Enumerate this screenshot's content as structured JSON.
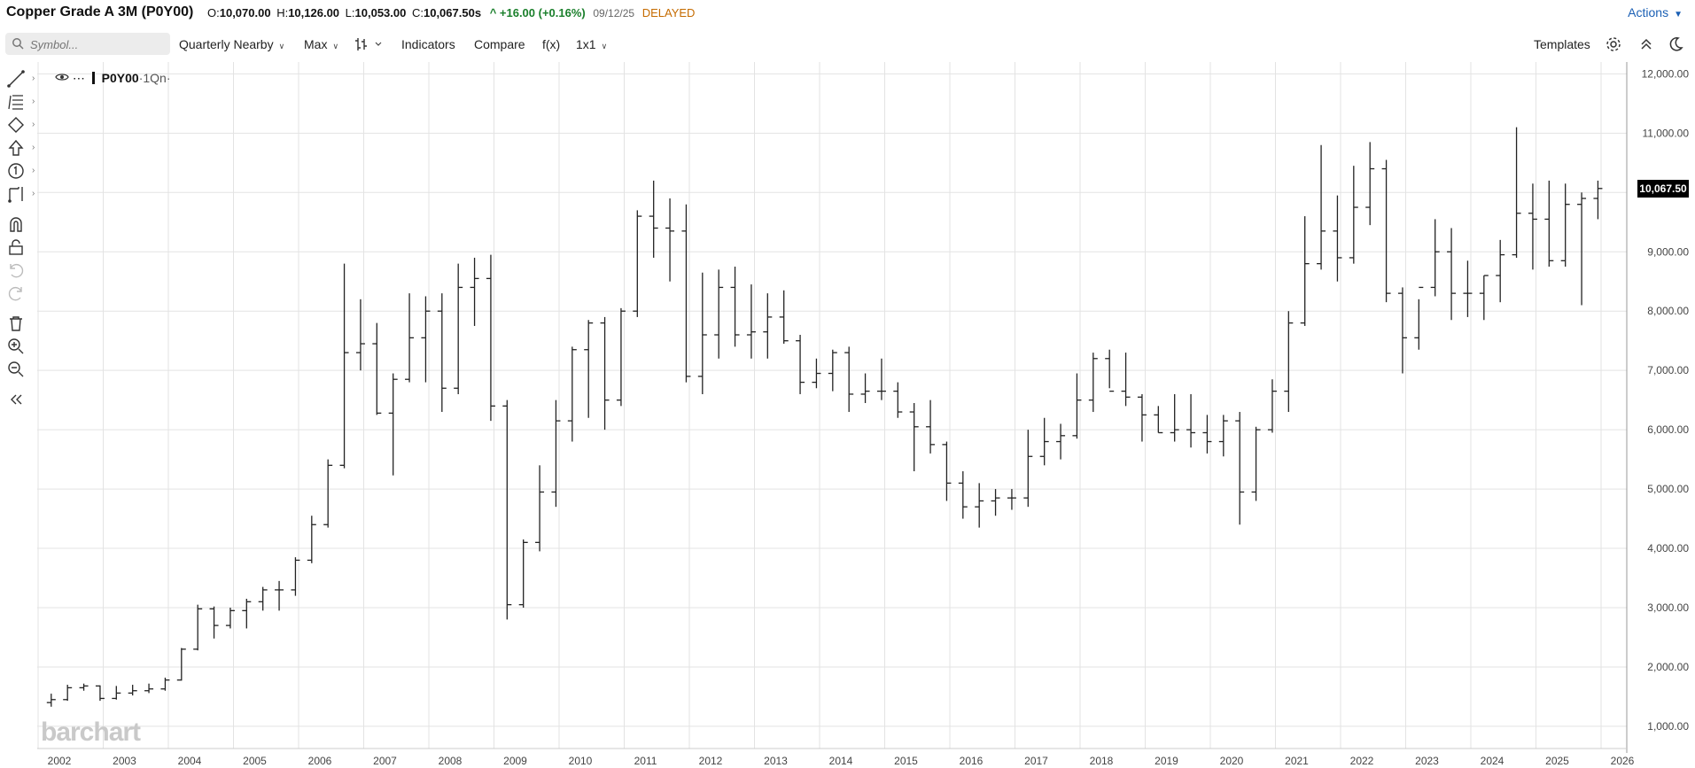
{
  "header": {
    "title": "Copper Grade A 3M (P0Y00)",
    "open_label": "O:",
    "open": "10,070.00",
    "high_label": "H:",
    "high": "10,126.00",
    "low_label": "L:",
    "low": "10,053.00",
    "close_label": "C:",
    "close": "10,067.50s",
    "change": "^ +16.00 (+0.16%)",
    "date": "09/12/25",
    "status": "DELAYED",
    "actions_label": "Actions"
  },
  "toolbar": {
    "search_placeholder": "Symbol...",
    "period_label": "Quarterly Nearby",
    "range_label": "Max",
    "indicators_label": "Indicators",
    "compare_label": "Compare",
    "fx_label": "f(x)",
    "layout_label": "1x1",
    "templates_label": "Templates",
    "icons": [
      "search-icon",
      "bar-type-icon",
      "settings-icon",
      "collapse-icon",
      "dark-mode-icon"
    ]
  },
  "left_tools": [
    "line-tool-icon",
    "fib-tool-icon",
    "shape-tool-icon",
    "arrow-tool-icon",
    "number-tool-icon",
    "measure-tool-icon",
    "magnet-icon",
    "lock-icon",
    "undo-icon",
    "redo-icon",
    "trash-icon",
    "zoom-in-icon",
    "zoom-out-icon",
    "collapse-panel-icon"
  ],
  "legend": {
    "symbol": "P0Y00",
    "period": "·1Qn·"
  },
  "current_price_label": "10,067.50",
  "watermark": "barchart",
  "colors": {
    "bar": "#222222",
    "grid": "#e3e3e3",
    "price_tag_bg": "#000000",
    "change": "#1a7f2b",
    "delayed": "#c56b00",
    "link": "#1a5fb4"
  },
  "chart_data": {
    "type": "ohlc",
    "ylim": [
      700,
      12200
    ],
    "y_ticks": [
      "1,000.00",
      "2,000.00",
      "3,000.00",
      "4,000.00",
      "5,000.00",
      "6,000.00",
      "7,000.00",
      "8,000.00",
      "9,000.00",
      "10,000.00",
      "11,000.00",
      "12,000.00"
    ],
    "y_tick_values": [
      1000,
      2000,
      3000,
      4000,
      5000,
      6000,
      7000,
      8000,
      9000,
      10000,
      11000,
      12000
    ],
    "x_ticks": [
      "2002",
      "2003",
      "2004",
      "2005",
      "2006",
      "2007",
      "2008",
      "2009",
      "2010",
      "2011",
      "2012",
      "2013",
      "2014",
      "2015",
      "2016",
      "2017",
      "2018",
      "2019",
      "2020",
      "2021",
      "2022",
      "2023",
      "2024",
      "2025",
      "2026"
    ],
    "start_quarter": "2001-Q4",
    "grid": true,
    "bars": [
      [
        1400,
        1550,
        1330,
        1450
      ],
      [
        1450,
        1700,
        1430,
        1650
      ],
      [
        1650,
        1720,
        1600,
        1680
      ],
      [
        1680,
        1690,
        1430,
        1470
      ],
      [
        1470,
        1680,
        1450,
        1560
      ],
      [
        1560,
        1700,
        1520,
        1600
      ],
      [
        1600,
        1720,
        1560,
        1630
      ],
      [
        1630,
        1820,
        1600,
        1780
      ],
      [
        1780,
        2320,
        1770,
        2300
      ],
      [
        2300,
        3050,
        2280,
        2980
      ],
      [
        2980,
        3020,
        2480,
        2700
      ],
      [
        2700,
        3000,
        2650,
        2950
      ],
      [
        2950,
        3150,
        2650,
        3100
      ],
      [
        3100,
        3350,
        2950,
        3300
      ],
      [
        3300,
        3450,
        2950,
        3300
      ],
      [
        3300,
        3850,
        3200,
        3800
      ],
      [
        3800,
        4550,
        3750,
        4400
      ],
      [
        4400,
        5500,
        4350,
        5400
      ],
      [
        5400,
        8800,
        5350,
        7300
      ],
      [
        7300,
        8200,
        7000,
        7450
      ],
      [
        7450,
        7800,
        6250,
        6280
      ],
      [
        6280,
        6950,
        5230,
        6850
      ],
      [
        6850,
        8300,
        6800,
        7550
      ],
      [
        7550,
        8250,
        6800,
        8000
      ],
      [
        8000,
        8300,
        6300,
        6700
      ],
      [
        6700,
        8800,
        6600,
        8400
      ],
      [
        8400,
        8900,
        7750,
        8550
      ],
      [
        8550,
        8950,
        6150,
        6400
      ],
      [
        6400,
        6500,
        2800,
        3050
      ],
      [
        3050,
        4150,
        3000,
        4100
      ],
      [
        4100,
        5400,
        3950,
        4950
      ],
      [
        4950,
        6500,
        4700,
        6150
      ],
      [
        6150,
        7400,
        5800,
        7350
      ],
      [
        7350,
        7850,
        6200,
        7800
      ],
      [
        7800,
        7900,
        6000,
        6500
      ],
      [
        6500,
        8050,
        6400,
        8000
      ],
      [
        8000,
        9700,
        7900,
        9600
      ],
      [
        9600,
        10200,
        8900,
        9400
      ],
      [
        9400,
        9900,
        8500,
        9350
      ],
      [
        9350,
        9800,
        6800,
        6900
      ],
      [
        6900,
        8650,
        6600,
        7600
      ],
      [
        7600,
        8700,
        7200,
        8400
      ],
      [
        8400,
        8750,
        7400,
        7600
      ],
      [
        7600,
        8450,
        7200,
        7650
      ],
      [
        7650,
        8300,
        7200,
        7900
      ],
      [
        7900,
        8350,
        7450,
        7500
      ],
      [
        7500,
        7600,
        6600,
        6800
      ],
      [
        6800,
        7200,
        6700,
        6950
      ],
      [
        6950,
        7350,
        6650,
        7300
      ],
      [
        7300,
        7400,
        6300,
        6600
      ],
      [
        6600,
        6950,
        6450,
        6650
      ],
      [
        6650,
        7200,
        6500,
        6650
      ],
      [
        6650,
        6800,
        6200,
        6300
      ],
      [
        6300,
        6450,
        5300,
        6050
      ],
      [
        6050,
        6500,
        5600,
        5750
      ],
      [
        5750,
        5800,
        4800,
        5100
      ],
      [
        5100,
        5300,
        4500,
        4700
      ],
      [
        4700,
        5100,
        4350,
        4800
      ],
      [
        4800,
        5000,
        4550,
        4850
      ],
      [
        4850,
        5000,
        4650,
        4850
      ],
      [
        4850,
        6000,
        4700,
        5550
      ],
      [
        5550,
        6200,
        5400,
        5800
      ],
      [
        5800,
        6100,
        5500,
        5900
      ],
      [
        5900,
        6950,
        5850,
        6500
      ],
      [
        6500,
        7300,
        6300,
        7200
      ],
      [
        7200,
        7350,
        6700,
        6650
      ],
      [
        6650,
        7300,
        6400,
        6550
      ],
      [
        6550,
        6600,
        5800,
        6250
      ],
      [
        6250,
        6400,
        5950,
        5950
      ],
      [
        5950,
        6600,
        5800,
        6000
      ],
      [
        6000,
        6600,
        5700,
        5950
      ],
      [
        5950,
        6250,
        5600,
        5800
      ],
      [
        5800,
        6250,
        5550,
        6150
      ],
      [
        6150,
        6300,
        4400,
        4950
      ],
      [
        4950,
        6050,
        4800,
        6000
      ],
      [
        6000,
        6850,
        5950,
        6650
      ],
      [
        6650,
        8000,
        6300,
        7800
      ],
      [
        7800,
        9600,
        7750,
        8800
      ],
      [
        8800,
        10800,
        8700,
        9350
      ],
      [
        9350,
        9950,
        8500,
        8900
      ],
      [
        8900,
        10450,
        8800,
        9750
      ],
      [
        9750,
        10850,
        9450,
        10400
      ],
      [
        10400,
        10550,
        8150,
        8300
      ],
      [
        8300,
        8400,
        6950,
        7550
      ],
      [
        7550,
        8200,
        7350,
        8400
      ],
      [
        8400,
        9550,
        8250,
        9000
      ],
      [
        9000,
        9400,
        7850,
        8300
      ],
      [
        8300,
        8850,
        7900,
        8300
      ],
      [
        8300,
        8600,
        7850,
        8600
      ],
      [
        8600,
        9200,
        8150,
        8950
      ],
      [
        8950,
        11100,
        8900,
        9650
      ],
      [
        9650,
        10150,
        8700,
        9550
      ],
      [
        9550,
        10200,
        8750,
        8850
      ],
      [
        8850,
        10150,
        8750,
        9800
      ],
      [
        9800,
        10000,
        8100,
        9900
      ],
      [
        9900,
        10200,
        9550,
        10067.5
      ]
    ]
  }
}
